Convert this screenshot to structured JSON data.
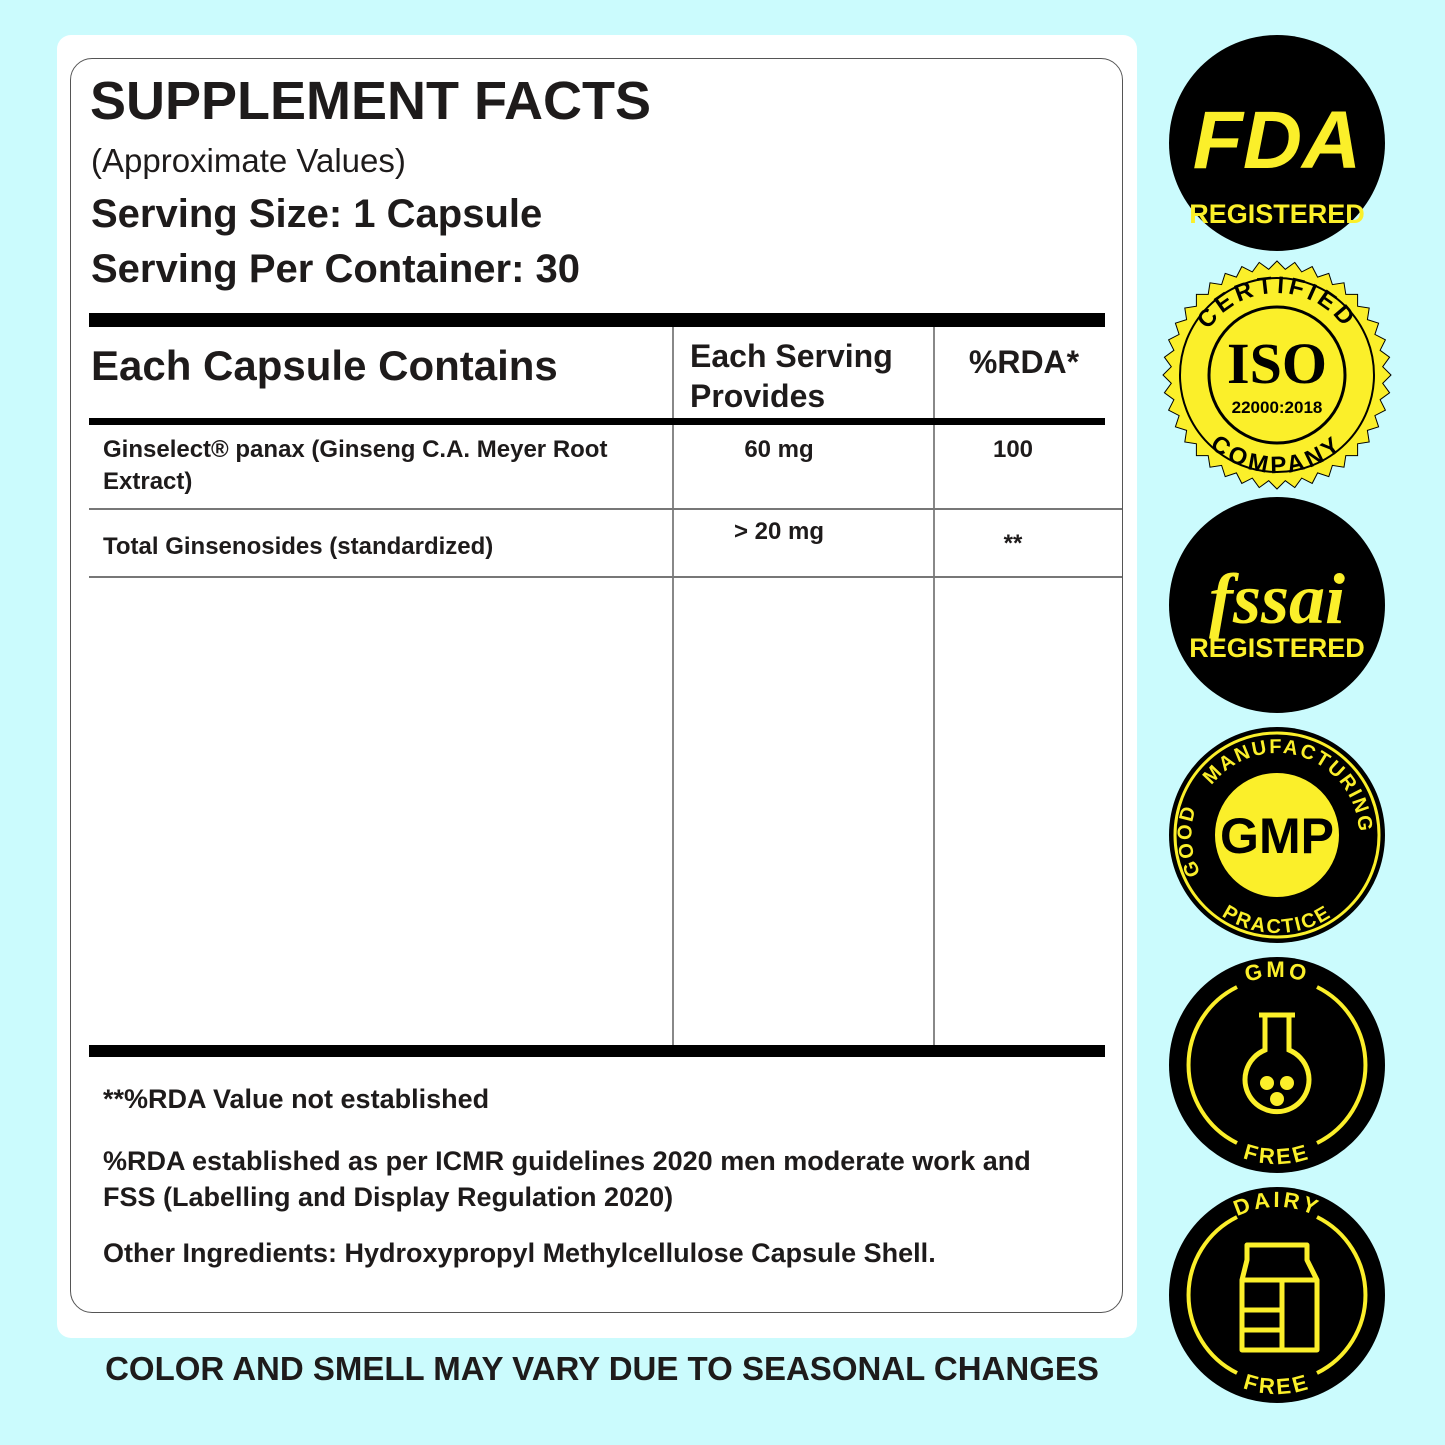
{
  "header": {
    "title": "SUPPLEMENT FACTS",
    "subtitle": "(Approximate Values)",
    "serving_size": "Serving Size: 1 Capsule",
    "servings_per_container": "Serving Per Container: 30"
  },
  "table": {
    "columns": [
      "Each Capsule Contains",
      "Each Serving Provides",
      "%RDA*"
    ],
    "rows": [
      [
        "Ginselect® panax (Ginseng C.A. Meyer Root Extract)",
        "60 mg",
        "100"
      ],
      [
        "Total Ginsenosides (standardized)",
        "> 20 mg",
        "**"
      ]
    ]
  },
  "notes": [
    "**%RDA Value not established",
    "%RDA established as per ICMR guidelines 2020 men moderate work and FSS (Labelling and Display Regulation 2020)",
    "Other Ingredients: Hydroxypropyl Methylcellulose Capsule Shell."
  ],
  "footer": "COLOR AND SMELL MAY VARY DUE TO SEASONAL CHANGES",
  "badges": [
    {
      "logo": "FDA",
      "caption": "REGISTERED"
    },
    {
      "arc_top": "CERTIFIED",
      "logo": "ISO",
      "caption": "22000:2018",
      "arc_bottom": "COMPANY"
    },
    {
      "logo": "fssai",
      "caption": "REGISTERED"
    },
    {
      "arc_top": "MANUFACTURING",
      "arc_left": "GOOD",
      "arc_bottom": "PRACTICE",
      "logo": "GMP"
    },
    {
      "arc_top": "GMO",
      "arc_bottom": "FREE"
    },
    {
      "arc_top": "DAIRY",
      "arc_bottom": "FREE"
    }
  ]
}
